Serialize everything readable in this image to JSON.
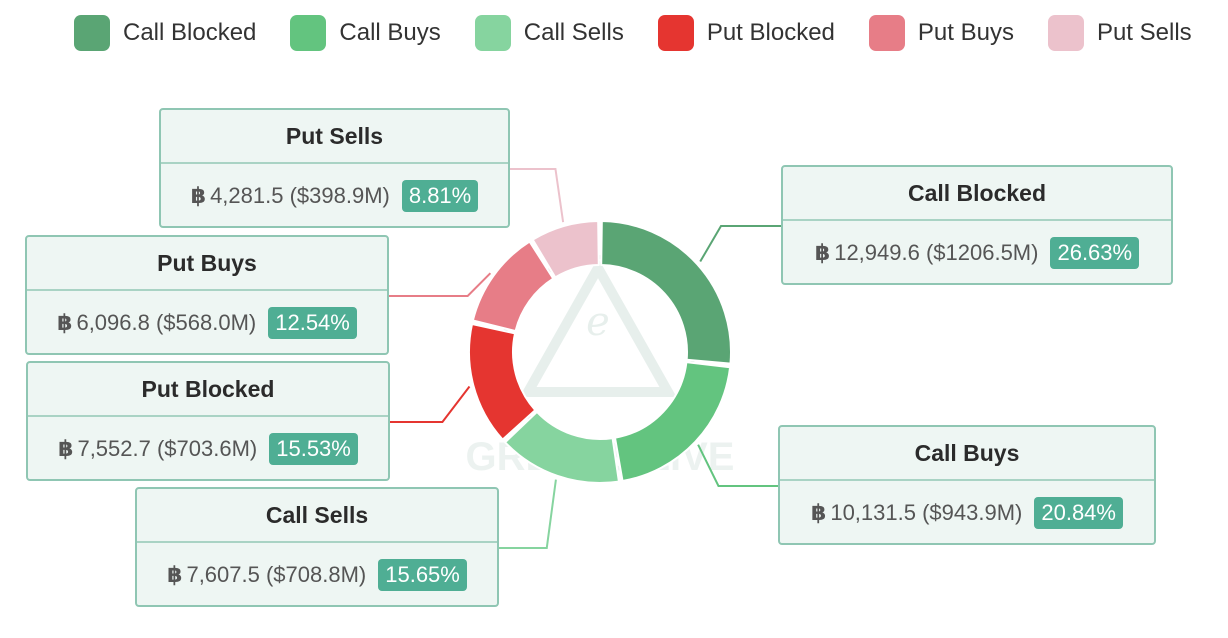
{
  "currency_symbol": "฿",
  "chart_data": {
    "type": "pie",
    "variant": "donut",
    "legend_position": "top",
    "categories": [
      "Call Blocked",
      "Call Buys",
      "Call Sells",
      "Put Blocked",
      "Put Buys",
      "Put Sells"
    ],
    "colors": [
      "#5aa574",
      "#63c47f",
      "#86d49f",
      "#e53530",
      "#e77d87",
      "#ecc2cc"
    ],
    "values": [
      26.63,
      20.84,
      15.65,
      15.53,
      12.54,
      8.81
    ],
    "btc_volume": [
      "12,949.6",
      "10,131.5",
      "7,607.5",
      "7,552.7",
      "6,096.8",
      "4,281.5"
    ],
    "usd_volume": [
      "($1206.5M)",
      "($943.9M)",
      "($708.8M)",
      "($703.6M)",
      "($568.0M)",
      "($398.9M)"
    ],
    "percent_labels": [
      "26.63%",
      "20.84%",
      "15.65%",
      "15.53%",
      "12.54%",
      "8.81%"
    ]
  },
  "watermark": "GREEKS.LIVE"
}
